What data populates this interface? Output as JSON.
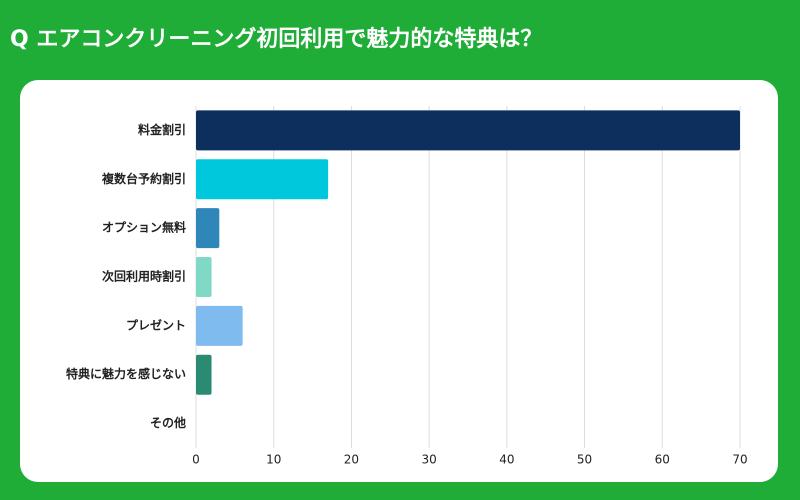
{
  "chart_data": {
    "type": "barh",
    "title": "Q エアコンクリーニング初回利用で魅力的な特典は？",
    "categories": [
      "料金割引",
      "複数台予約割引",
      "オプション無料",
      "次回利用時割引",
      "プレゼント",
      "特典に魅力を感じない",
      "その他"
    ],
    "values": [
      70,
      17,
      3,
      2,
      6,
      2,
      0
    ],
    "colors": [
      "#0d2f5e",
      "#00c8dc",
      "#2f86b8",
      "#7fd9c4",
      "#80bbf0",
      "#2a8a72",
      "#999999"
    ],
    "xlim": [
      0,
      70
    ],
    "xticks": [
      0,
      10,
      20,
      30,
      40,
      50,
      60,
      70
    ],
    "grid": true
  }
}
